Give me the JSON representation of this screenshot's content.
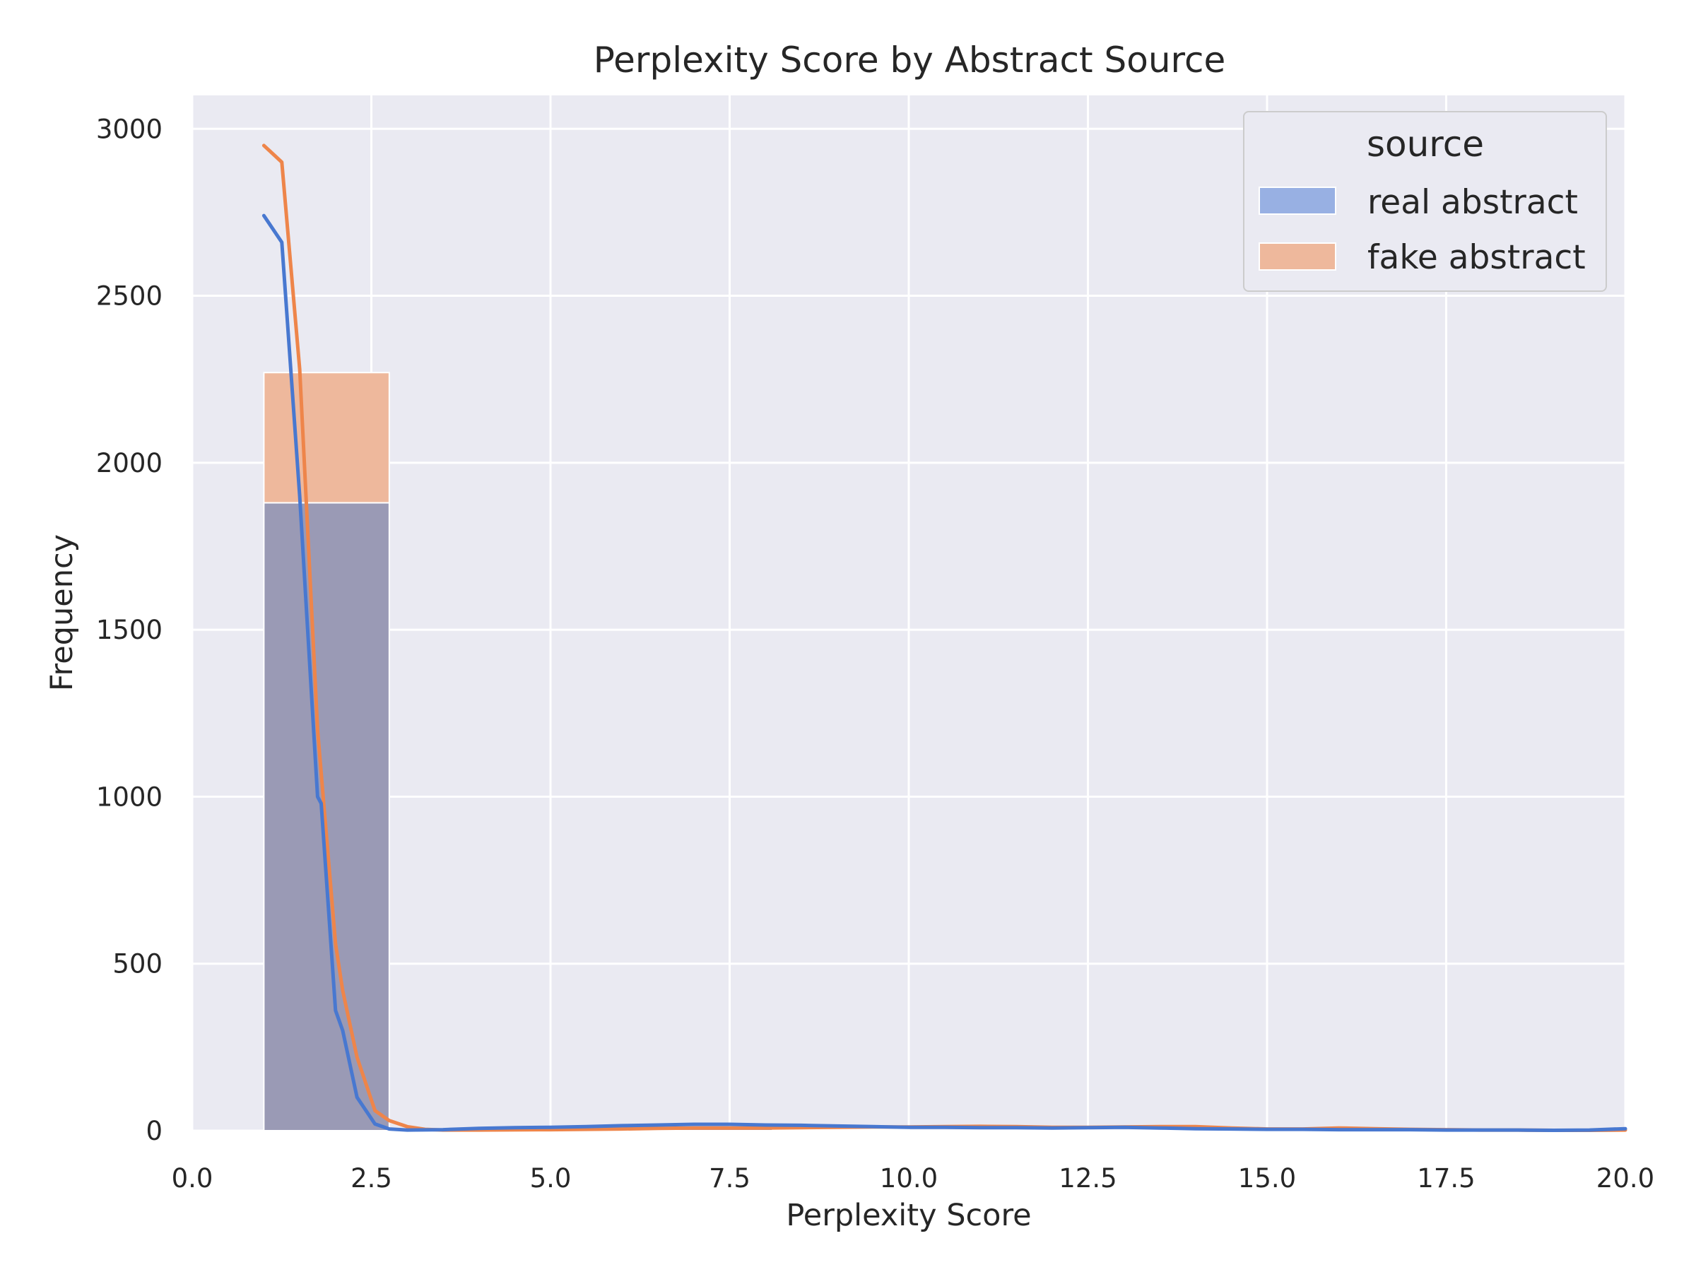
{
  "chart_data": {
    "type": "bar",
    "title": "Perplexity Score by Abstract Source",
    "xlabel": "Perplexity Score",
    "ylabel": "Frequency",
    "xlim": [
      0,
      20
    ],
    "ylim": [
      0,
      3100
    ],
    "xticks": [
      0,
      2.5,
      5,
      7.5,
      10,
      12.5,
      15,
      17.5,
      20
    ],
    "xtick_labels": [
      "0.0",
      "2.5",
      "5.0",
      "7.5",
      "10.0",
      "12.5",
      "15.0",
      "17.5",
      "20.0"
    ],
    "yticks": [
      0,
      500,
      1000,
      1500,
      2000,
      2500,
      3000
    ],
    "ytick_labels": [
      "0",
      "500",
      "1000",
      "1500",
      "2000",
      "2500",
      "3000"
    ],
    "grid": true,
    "background": "#eaeaf2",
    "legend": {
      "title": "source",
      "placement": "top-right",
      "entries": [
        "real abstract",
        "fake abstract"
      ]
    },
    "histogram": {
      "bin_edges": [
        1.0,
        2.75
      ],
      "series": [
        {
          "name": "real abstract",
          "counts": [
            1880
          ],
          "color": "#4878d0"
        },
        {
          "name": "fake abstract",
          "counts": [
            2270
          ],
          "color": "#ee854a"
        }
      ],
      "overlap_color": "#9a9ab5",
      "fake_only_color": "#eeb89c",
      "small_bins": [
        {
          "x0": 5.9,
          "x1": 8.1,
          "count": 6
        },
        {
          "x0": 8.1,
          "x1": 10.0,
          "count": 4
        }
      ]
    },
    "kde_series": [
      {
        "name": "real abstract",
        "color": "#4878d0",
        "x": [
          1.0,
          1.25,
          1.5,
          1.75,
          1.8,
          2.0,
          2.1,
          2.3,
          2.55,
          2.75,
          3.0,
          3.5,
          4.0,
          4.5,
          5.0,
          5.5,
          6.0,
          6.5,
          7.0,
          7.5,
          8.0,
          8.5,
          9.0,
          9.5,
          10.0,
          10.5,
          11.0,
          11.5,
          12.0,
          12.5,
          13.0,
          13.5,
          14.0,
          14.5,
          15.0,
          15.5,
          16.0,
          16.5,
          17.0,
          17.5,
          18.0,
          18.5,
          19.0,
          19.5,
          20.0
        ],
        "y": [
          2740,
          2660,
          1900,
          1000,
          980,
          360,
          300,
          100,
          20,
          5,
          2,
          3,
          7,
          9,
          10,
          12,
          15,
          17,
          19,
          19,
          17,
          16,
          14,
          12,
          10,
          10,
          9,
          9,
          8,
          9,
          10,
          8,
          6,
          5,
          4,
          4,
          3,
          3,
          3,
          2,
          2,
          2,
          1,
          2,
          6
        ]
      },
      {
        "name": "fake abstract",
        "color": "#ee854a",
        "x": [
          1.0,
          1.25,
          1.5,
          1.75,
          2.0,
          2.1,
          2.3,
          2.55,
          2.75,
          3.0,
          3.25,
          3.5,
          4.0,
          5.0,
          6.0,
          6.5,
          7.0,
          7.5,
          8.0,
          8.5,
          9.0,
          9.5,
          10.0,
          10.5,
          11.0,
          11.5,
          12.0,
          12.5,
          13.0,
          13.5,
          14.0,
          14.5,
          15.0,
          15.5,
          16.0,
          16.5,
          17.0,
          17.5,
          18.0,
          18.5,
          19.0,
          19.5,
          20.0
        ],
        "y": [
          2950,
          2900,
          2280,
          1200,
          560,
          420,
          220,
          60,
          30,
          12,
          4,
          2,
          2,
          3,
          5,
          7,
          8,
          8,
          8,
          9,
          10,
          11,
          11,
          12,
          13,
          12,
          10,
          10,
          11,
          12,
          12,
          8,
          5,
          5,
          8,
          6,
          4,
          3,
          2,
          2,
          1,
          1,
          2
        ]
      }
    ]
  }
}
